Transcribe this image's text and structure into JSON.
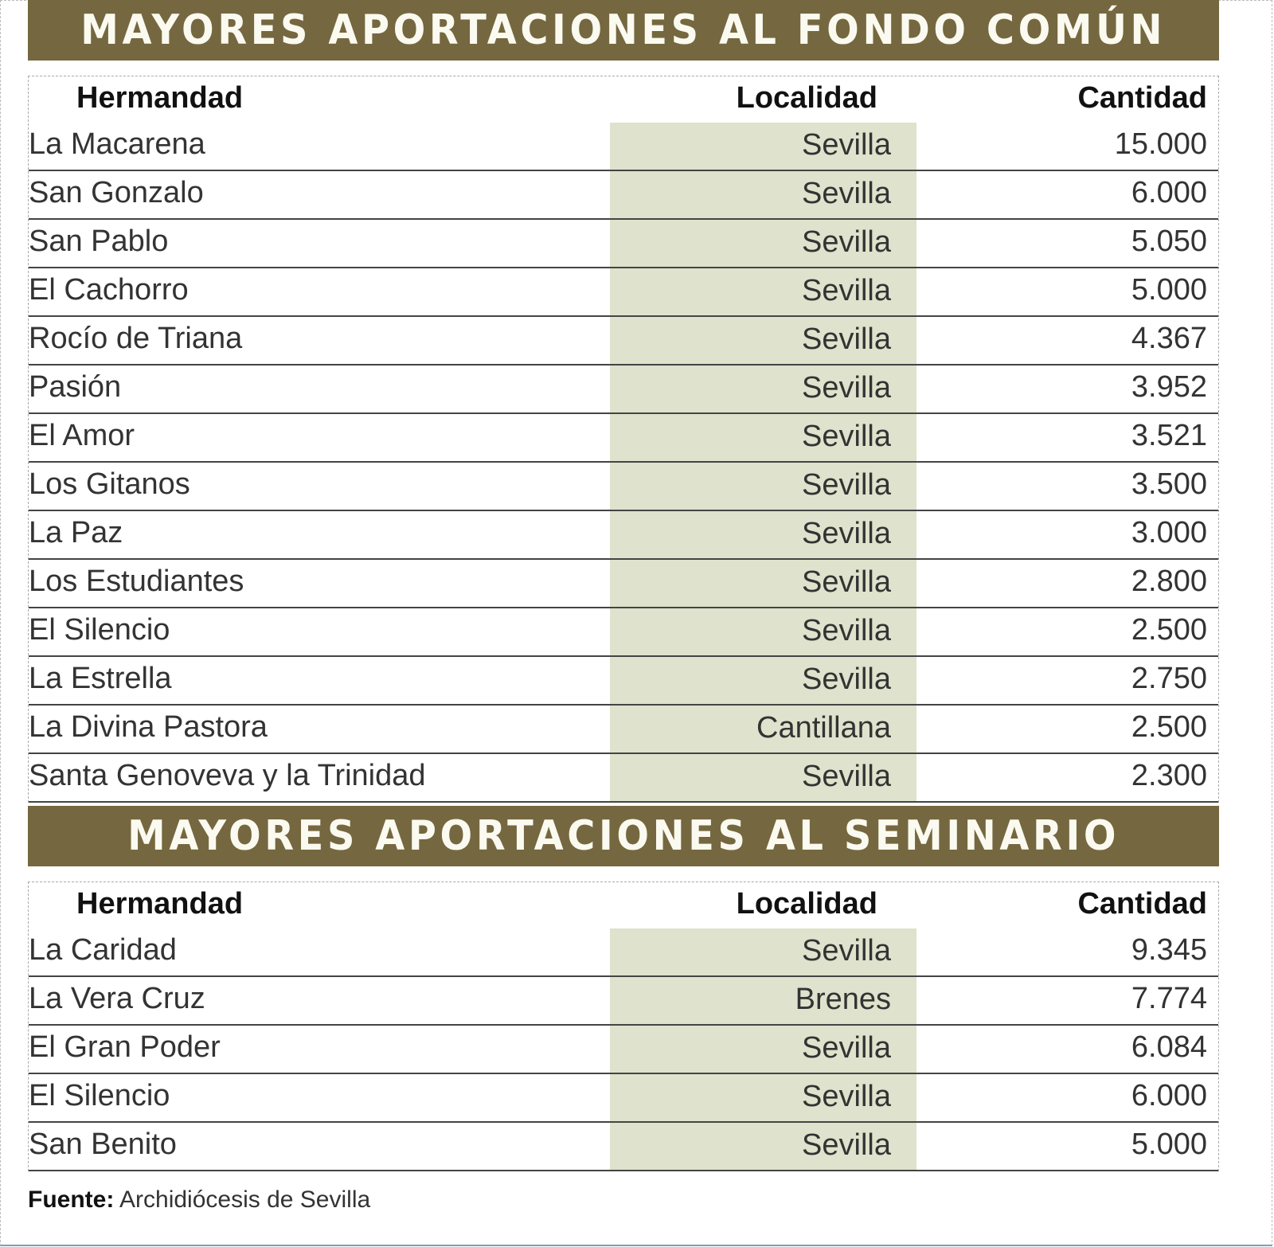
{
  "sections": [
    {
      "title": "MAYORES APORTACIONES AL FONDO COMÚN",
      "headers": {
        "hermandad": "Hermandad",
        "localidad": "Localidad",
        "cantidad": "Cantidad"
      },
      "rows": [
        {
          "hermandad": "La Macarena",
          "localidad": "Sevilla",
          "cantidad": "15.000"
        },
        {
          "hermandad": "San Gonzalo",
          "localidad": "Sevilla",
          "cantidad": "6.000"
        },
        {
          "hermandad": "San Pablo",
          "localidad": "Sevilla",
          "cantidad": "5.050"
        },
        {
          "hermandad": "El Cachorro",
          "localidad": "Sevilla",
          "cantidad": "5.000"
        },
        {
          "hermandad": "Rocío de Triana",
          "localidad": "Sevilla",
          "cantidad": "4.367"
        },
        {
          "hermandad": "Pasión",
          "localidad": "Sevilla",
          "cantidad": "3.952"
        },
        {
          "hermandad": "El Amor",
          "localidad": "Sevilla",
          "cantidad": "3.521"
        },
        {
          "hermandad": "Los Gitanos",
          "localidad": "Sevilla",
          "cantidad": "3.500"
        },
        {
          "hermandad": "La Paz",
          "localidad": "Sevilla",
          "cantidad": "3.000"
        },
        {
          "hermandad": "Los Estudiantes",
          "localidad": "Sevilla",
          "cantidad": "2.800"
        },
        {
          "hermandad": "El Silencio",
          "localidad": "Sevilla",
          "cantidad": "2.500"
        },
        {
          "hermandad": "La Estrella",
          "localidad": "Sevilla",
          "cantidad": "2.750"
        },
        {
          "hermandad": "La Divina Pastora",
          "localidad": "Cantillana",
          "cantidad": "2.500"
        },
        {
          "hermandad": "Santa Genoveva y la Trinidad",
          "localidad": "Sevilla",
          "cantidad": "2.300"
        }
      ]
    },
    {
      "title": "MAYORES APORTACIONES AL SEMINARIO",
      "headers": {
        "hermandad": "Hermandad",
        "localidad": "Localidad",
        "cantidad": "Cantidad"
      },
      "rows": [
        {
          "hermandad": "La Caridad",
          "localidad": "Sevilla",
          "cantidad": "9.345"
        },
        {
          "hermandad": "La Vera Cruz",
          "localidad": "Brenes",
          "cantidad": "7.774"
        },
        {
          "hermandad": "El Gran Poder",
          "localidad": "Sevilla",
          "cantidad": "6.084"
        },
        {
          "hermandad": "El Silencio",
          "localidad": "Sevilla",
          "cantidad": "6.000"
        },
        {
          "hermandad": "San Benito",
          "localidad": "Sevilla",
          "cantidad": "5.000"
        }
      ]
    }
  ],
  "source": {
    "label": "Fuente:",
    "text": "Archidiócesis de Sevilla"
  },
  "colors": {
    "banner": "#75673f",
    "banner_text": "#fbfaf0",
    "localidad_fill": "#dfe2cc"
  }
}
